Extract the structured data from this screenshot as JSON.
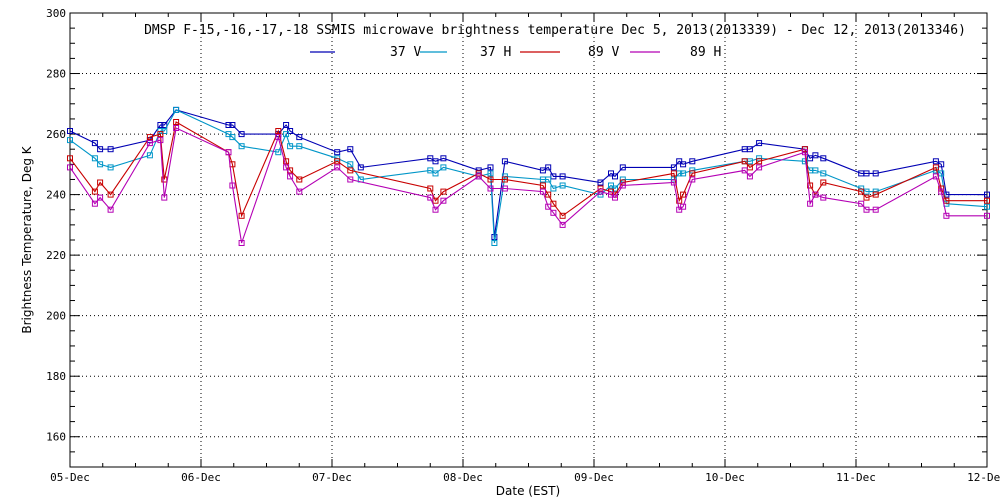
{
  "chart_data": {
    "type": "line",
    "title": "DMSP F-15,-16,-17,-18 SSMIS microwave brightness temperature Dec  5, 2013(2013339) - Dec 12, 2013(2013346)",
    "xlabel": "Date (EST)",
    "ylabel": "Brightness Temperature, Deg K",
    "xlim": [
      0,
      7
    ],
    "ylim": [
      150,
      300
    ],
    "grid": true,
    "legend_position": "top-center",
    "x_ticks": [
      {
        "value": 0,
        "label": "05-Dec"
      },
      {
        "value": 1,
        "label": "06-Dec"
      },
      {
        "value": 2,
        "label": "07-Dec"
      },
      {
        "value": 3,
        "label": "08-Dec"
      },
      {
        "value": 4,
        "label": "09-Dec"
      },
      {
        "value": 5,
        "label": "10-Dec"
      },
      {
        "value": 6,
        "label": "11-Dec"
      },
      {
        "value": 7,
        "label": "12-Dec"
      }
    ],
    "y_ticks": [
      160,
      180,
      200,
      220,
      240,
      260,
      280,
      300
    ],
    "series": [
      {
        "name": "37 V",
        "color": "#0000b4",
        "points": [
          [
            0.0,
            261
          ],
          [
            0.19,
            257
          ],
          [
            0.23,
            255
          ],
          [
            0.31,
            255
          ],
          [
            0.61,
            258
          ],
          [
            0.69,
            263
          ],
          [
            0.72,
            263
          ],
          [
            0.81,
            268
          ],
          [
            1.21,
            263
          ],
          [
            1.24,
            263
          ],
          [
            1.31,
            260
          ],
          [
            1.59,
            260
          ],
          [
            1.65,
            263
          ],
          [
            1.68,
            261
          ],
          [
            1.75,
            259
          ],
          [
            2.04,
            254
          ],
          [
            2.14,
            255
          ],
          [
            2.22,
            249
          ],
          [
            2.75,
            252
          ],
          [
            2.79,
            251
          ],
          [
            2.85,
            252
          ],
          [
            3.12,
            248
          ],
          [
            3.21,
            249
          ],
          [
            3.24,
            226
          ],
          [
            3.32,
            251
          ],
          [
            3.61,
            248
          ],
          [
            3.65,
            249
          ],
          [
            3.69,
            246
          ],
          [
            3.76,
            246
          ],
          [
            4.05,
            244
          ],
          [
            4.13,
            247
          ],
          [
            4.16,
            246
          ],
          [
            4.22,
            249
          ],
          [
            4.61,
            249
          ],
          [
            4.65,
            251
          ],
          [
            4.68,
            250
          ],
          [
            4.75,
            251
          ],
          [
            5.15,
            255
          ],
          [
            5.19,
            255
          ],
          [
            5.26,
            257
          ],
          [
            5.61,
            255
          ],
          [
            5.65,
            252
          ],
          [
            5.69,
            253
          ],
          [
            5.75,
            252
          ],
          [
            6.04,
            247
          ],
          [
            6.08,
            247
          ],
          [
            6.15,
            247
          ],
          [
            6.61,
            251
          ],
          [
            6.65,
            250
          ],
          [
            6.69,
            240
          ],
          [
            7.0,
            240
          ]
        ]
      },
      {
        "name": "37 H",
        "color": "#0096c8",
        "points": [
          [
            0.0,
            258
          ],
          [
            0.19,
            252
          ],
          [
            0.23,
            250
          ],
          [
            0.31,
            249
          ],
          [
            0.61,
            253
          ],
          [
            0.69,
            261
          ],
          [
            0.72,
            261
          ],
          [
            0.81,
            268
          ],
          [
            1.21,
            260
          ],
          [
            1.24,
            259
          ],
          [
            1.31,
            256
          ],
          [
            1.59,
            254
          ],
          [
            1.65,
            260
          ],
          [
            1.68,
            256
          ],
          [
            1.75,
            256
          ],
          [
            2.04,
            252
          ],
          [
            2.14,
            250
          ],
          [
            2.22,
            245
          ],
          [
            2.75,
            248
          ],
          [
            2.79,
            247
          ],
          [
            2.85,
            249
          ],
          [
            3.12,
            246
          ],
          [
            3.21,
            247
          ],
          [
            3.24,
            224
          ],
          [
            3.32,
            246
          ],
          [
            3.61,
            245
          ],
          [
            3.65,
            245
          ],
          [
            3.69,
            242
          ],
          [
            3.76,
            243
          ],
          [
            4.05,
            240
          ],
          [
            4.13,
            243
          ],
          [
            4.16,
            242
          ],
          [
            4.22,
            245
          ],
          [
            4.61,
            245
          ],
          [
            4.65,
            247
          ],
          [
            4.68,
            247
          ],
          [
            4.75,
            248
          ],
          [
            5.15,
            251
          ],
          [
            5.19,
            251
          ],
          [
            5.26,
            252
          ],
          [
            5.61,
            251
          ],
          [
            5.65,
            248
          ],
          [
            5.69,
            248
          ],
          [
            5.75,
            247
          ],
          [
            6.04,
            242
          ],
          [
            6.08,
            241
          ],
          [
            6.15,
            241
          ],
          [
            6.61,
            248
          ],
          [
            6.65,
            247
          ],
          [
            6.69,
            237
          ],
          [
            7.0,
            236
          ]
        ]
      },
      {
        "name": "89 V",
        "color": "#c80000",
        "points": [
          [
            0.0,
            252
          ],
          [
            0.19,
            241
          ],
          [
            0.23,
            244
          ],
          [
            0.31,
            240
          ],
          [
            0.61,
            259
          ],
          [
            0.69,
            260
          ],
          [
            0.72,
            245
          ],
          [
            0.81,
            264
          ],
          [
            1.21,
            254
          ],
          [
            1.24,
            250
          ],
          [
            1.31,
            233
          ],
          [
            1.59,
            261
          ],
          [
            1.65,
            251
          ],
          [
            1.68,
            248
          ],
          [
            1.75,
            245
          ],
          [
            2.04,
            251
          ],
          [
            2.14,
            248
          ],
          [
            2.75,
            242
          ],
          [
            2.79,
            238
          ],
          [
            2.85,
            241
          ],
          [
            3.12,
            247
          ],
          [
            3.21,
            245
          ],
          [
            3.32,
            245
          ],
          [
            3.61,
            243
          ],
          [
            3.65,
            240
          ],
          [
            3.69,
            237
          ],
          [
            3.76,
            233
          ],
          [
            4.05,
            242
          ],
          [
            4.13,
            241
          ],
          [
            4.16,
            240
          ],
          [
            4.22,
            244
          ],
          [
            4.61,
            247
          ],
          [
            4.65,
            238
          ],
          [
            4.68,
            240
          ],
          [
            4.75,
            247
          ],
          [
            5.15,
            251
          ],
          [
            5.19,
            249
          ],
          [
            5.26,
            251
          ],
          [
            5.61,
            255
          ],
          [
            5.65,
            243
          ],
          [
            5.69,
            240
          ],
          [
            5.75,
            244
          ],
          [
            6.04,
            241
          ],
          [
            6.08,
            239
          ],
          [
            6.15,
            240
          ],
          [
            6.61,
            249
          ],
          [
            6.65,
            242
          ],
          [
            6.69,
            238
          ],
          [
            7.0,
            238
          ]
        ]
      },
      {
        "name": "89 H",
        "color": "#b400b4",
        "points": [
          [
            0.0,
            249
          ],
          [
            0.19,
            237
          ],
          [
            0.23,
            239
          ],
          [
            0.31,
            235
          ],
          [
            0.61,
            257
          ],
          [
            0.69,
            258
          ],
          [
            0.72,
            239
          ],
          [
            0.81,
            262
          ],
          [
            1.21,
            254
          ],
          [
            1.24,
            243
          ],
          [
            1.31,
            224
          ],
          [
            1.59,
            259
          ],
          [
            1.65,
            249
          ],
          [
            1.68,
            246
          ],
          [
            1.75,
            241
          ],
          [
            2.04,
            249
          ],
          [
            2.14,
            245
          ],
          [
            2.75,
            239
          ],
          [
            2.79,
            235
          ],
          [
            2.85,
            238
          ],
          [
            3.12,
            246
          ],
          [
            3.21,
            242
          ],
          [
            3.32,
            242
          ],
          [
            3.61,
            241
          ],
          [
            3.65,
            236
          ],
          [
            3.69,
            234
          ],
          [
            3.76,
            230
          ],
          [
            4.05,
            241
          ],
          [
            4.13,
            240
          ],
          [
            4.16,
            239
          ],
          [
            4.22,
            243
          ],
          [
            4.61,
            244
          ],
          [
            4.65,
            235
          ],
          [
            4.68,
            236
          ],
          [
            4.75,
            245
          ],
          [
            5.15,
            248
          ],
          [
            5.19,
            246
          ],
          [
            5.26,
            249
          ],
          [
            5.61,
            254
          ],
          [
            5.65,
            237
          ],
          [
            5.69,
            240
          ],
          [
            5.75,
            239
          ],
          [
            6.04,
            237
          ],
          [
            6.08,
            235
          ],
          [
            6.15,
            235
          ],
          [
            6.61,
            246
          ],
          [
            6.65,
            241
          ],
          [
            6.69,
            233
          ],
          [
            7.0,
            233
          ]
        ]
      }
    ]
  }
}
